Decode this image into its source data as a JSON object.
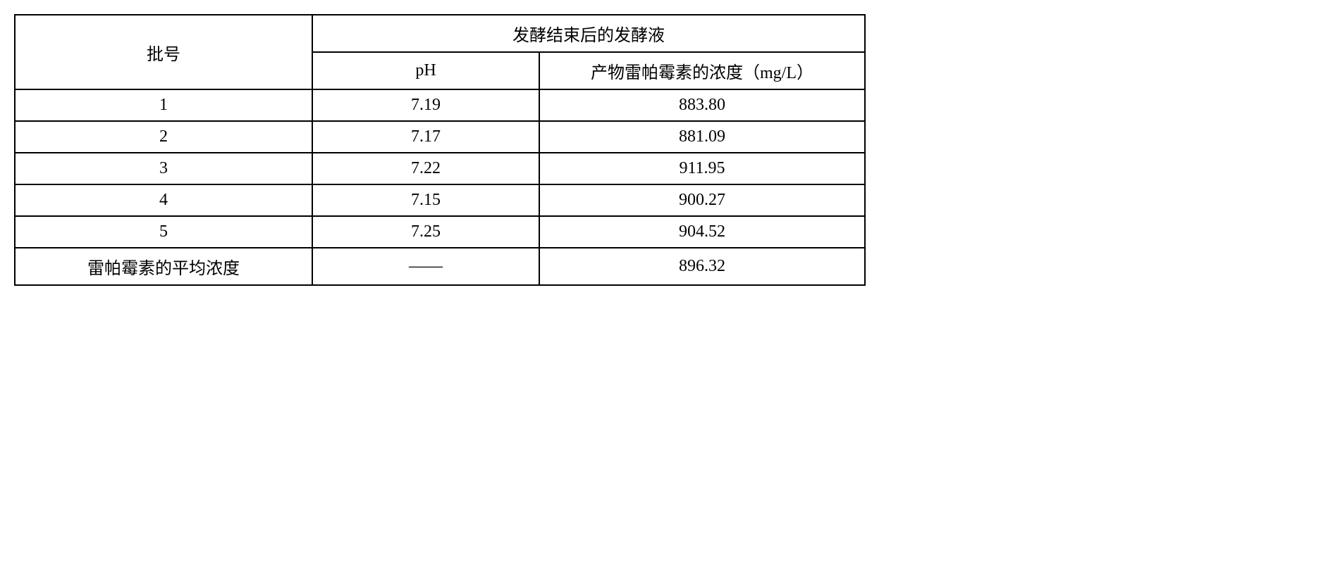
{
  "table": {
    "header": {
      "batch_label": "批号",
      "group_label": "发酵结束后的发酵液",
      "ph_label": "pH",
      "conc_label": "产物雷帕霉素的浓度（mg/L）"
    },
    "rows": [
      {
        "batch": "1",
        "ph": "7.19",
        "conc": "883.80"
      },
      {
        "batch": "2",
        "ph": "7.17",
        "conc": "881.09"
      },
      {
        "batch": "3",
        "ph": "7.22",
        "conc": "911.95"
      },
      {
        "batch": "4",
        "ph": "7.15",
        "conc": "900.27"
      },
      {
        "batch": "5",
        "ph": "7.25",
        "conc": "904.52"
      }
    ],
    "summary": {
      "label": "雷帕霉素的平均浓度",
      "ph": "——",
      "conc": "896.32"
    },
    "styling": {
      "border_color": "#000000",
      "border_width": 2,
      "background_color": "#ffffff",
      "text_color": "#000000",
      "font_size": 24,
      "font_family": "SimSun",
      "col_widths": {
        "batch": 380,
        "ph": 280,
        "conc": 420
      },
      "cell_padding": "8px 20px",
      "text_align": "center"
    }
  }
}
